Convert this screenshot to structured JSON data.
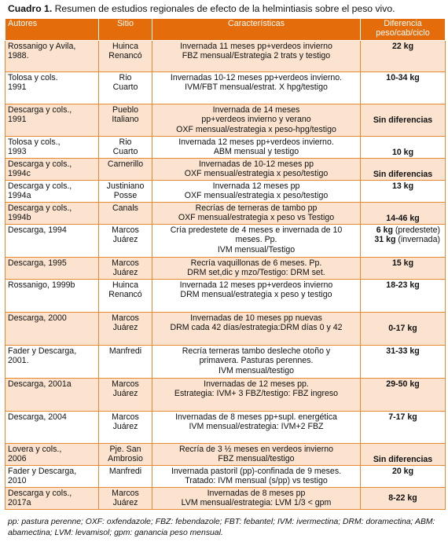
{
  "caption": {
    "label": "Cuadro 1.",
    "text": " Resumen de estudios regionales de efecto de la helmintiasis sobre el peso vivo."
  },
  "colors": {
    "header_bg": "#e46c0a",
    "band_bg": "#fbe3cf",
    "border": "#e8892f"
  },
  "table": {
    "headers": [
      "Autores",
      "Sitio",
      "Características",
      "Diferencia\npeso/cab/ciclo"
    ],
    "rows": [
      {
        "autor": "Rossanigo y Avila,\n1988.",
        "sitio": "Huinca\nRenancó",
        "carac": "Invernada 11 meses pp+verdeos invierno\nFBZ mensual/Estrategia 2 trats y testigo",
        "dif": "22 kg",
        "h": 40
      },
      {
        "autor": "Tolosa y cols.\n1991",
        "sitio": "Rio\nCuarto",
        "carac": "Invernadas 10-12 meses pp+verdeos invierno.\nIVM/FBT mensual/estrat. X hpg/testigo",
        "dif": "10-34 kg",
        "h": 41
      },
      {
        "autor": "Descarga y cols.,\n1991",
        "sitio": "Pueblo\nItaliano",
        "carac": "Invernada de 14 meses\npp+verdeos invierno y verano\nOXF mensual/estrategia x peso-hpg/testigo",
        "dif": "Sin diferencias",
        "valign": "middle",
        "h": 41
      },
      {
        "autor": "Tolosa    y    cols.,\n1993",
        "sitio": "Rio\nCuarto",
        "carac": "Invernada 12 meses pp+verdeos invierno.\nABM mensual y testigo",
        "dif": "10 kg",
        "valign": "bottom",
        "h": 28
      },
      {
        "autor": "Descarga y cols.,\n1994c",
        "sitio": "Carnerillo",
        "carac": "Invernadas de 10-12 meses pp\nOXF mensual/estrategia x peso/testigo",
        "dif": "Sin diferencias",
        "valign": "bottom",
        "h": 28
      },
      {
        "autor": "Descarga y cols.,\n1994a",
        "sitio": "Justiniano\nPosse",
        "carac": "Invernada 12 meses pp\nOXF mensual/estrategia x peso/testigo",
        "dif": "13 kg",
        "h": 28
      },
      {
        "autor": "Descarga y cols.,\n1994b",
        "sitio": "Canals",
        "carac": "Recrías de terneras de tambo pp\nOXF mensual/estrategia x peso vs Testigo",
        "dif": "14-46 kg",
        "valign": "bottom",
        "h": 28
      },
      {
        "autor": "Descarga, 1994",
        "sitio": "Marcos\nJuárez",
        "carac": "Cría predestete de 4 meses e invernada de 10\nmeses. Pp.\nIVM mensual/Testigo",
        "dif_lines": [
          [
            "6 kg",
            " (predestete)"
          ],
          [
            "31 kg",
            " (invernada)"
          ]
        ],
        "align": "right",
        "h": 42
      },
      {
        "autor": "Descarga, 1995",
        "sitio": "Marcos\nJuárez",
        "carac": "Recría vaquillonas de 6 meses. Pp.\nDRM set,dic y mzo/Testigo: DRM set.",
        "dif": "15 kg",
        "h": 28
      },
      {
        "autor": "Rossanigo, 1999b",
        "sitio": "Huinca\nRenancó",
        "carac": "Invernada 12 meses pp+verdeos invierno\nDRM mensual/estrategia x peso y testigo",
        "dif": "18-23 kg",
        "h": 42
      },
      {
        "autor": "Descarga, 2000",
        "sitio": "Marcos\nJuárez",
        "carac": "Invernadas de 10 meses pp nuevas\nDRM cada 42 días/estrategia:DRM días 0 y 42",
        "dif": "0-17 kg",
        "valign": "middle",
        "h": 42
      },
      {
        "autor": "Fader y Descarga,\n2001.",
        "sitio": "Manfredi",
        "carac": "Recría terneras tambo desleche otoño y\nprimavera. Pasturas perennes.\nIVM mensual/testigo",
        "dif": "31-33 kg",
        "h": 42
      },
      {
        "autor": "Descarga, 2001a",
        "sitio": "Marcos\nJuárez",
        "carac": "Invernadas de 12 meses pp.\nEstrategia: IVM+ 3 FBZ/testigo: FBZ ingreso",
        "dif": "29-50 kg",
        "h": 42
      },
      {
        "autor": "Descarga, 2004",
        "sitio": "Marcos\nJuárez",
        "carac": "Invernadas de 8 meses pp+supl. energética\nIVM mensual/estrategia: IVM+2 FBZ",
        "dif": "7-17 kg",
        "h": 41
      },
      {
        "autor": "Lovera y cols.,\n2006",
        "sitio": "Pje. San\nAmbrosio",
        "carac": "Recría de 3 ½ meses en verdeos invierno\nFBZ mensual/testigo",
        "dif": "Sin diferencias",
        "valign": "bottom",
        "h": 28
      },
      {
        "autor": "Fader y Descarga,\n2010",
        "sitio": "Manfredi",
        "carac": "Invernada pastoril (pp)-confinada de 9 meses.\nTratado: IVM mensual (s/pp) vs testigo",
        "dif": "20 kg",
        "h": 28
      },
      {
        "autor": "Descarga y cols.,\n2017a",
        "sitio": "Marcos\nJuárez",
        "carac": "Invernadas de 8 meses pp\nLVM mensual/estrategia: LVM 1/3 < gpm",
        "dif": "8-22 kg",
        "valign": "middle",
        "h": 28
      }
    ]
  },
  "footnote": "pp: pastura perenne; OXF: oxfendazole; FBZ: febendazole; FBT: febantel; IVM: ivermectina; DRM: doramectina; ABM: abamectina; LVM: levamisol; gpm: ganancia peso mensual."
}
